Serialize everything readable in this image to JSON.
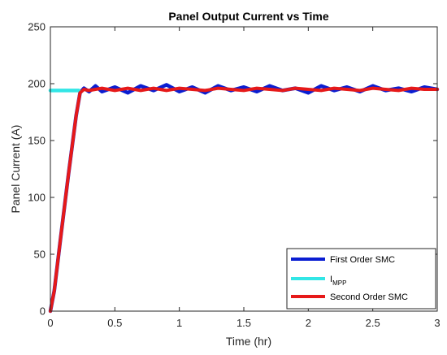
{
  "chart_data": {
    "type": "line",
    "title": "Panel Output Current vs Time",
    "xlabel": "Time (hr)",
    "ylabel": "Panel Current (A)",
    "xlim": [
      0,
      3
    ],
    "ylim": [
      0,
      250
    ],
    "xticks": [
      0,
      0.5,
      1,
      1.5,
      2,
      2.5,
      3
    ],
    "xtick_labels": [
      "0",
      "0.5",
      "1",
      "1.5",
      "2",
      "2.5",
      "3"
    ],
    "yticks": [
      0,
      50,
      100,
      150,
      200,
      250
    ],
    "ytick_labels": [
      "0",
      "50",
      "100",
      "150",
      "200",
      "250"
    ],
    "grid": false,
    "legend_position": "bottom-right",
    "series": [
      {
        "name": "First Order SMC",
        "color": "#0a1ed2",
        "x": [
          0,
          0.03,
          0.08,
          0.14,
          0.2,
          0.23,
          0.26,
          0.3,
          0.35,
          0.4,
          0.5,
          0.6,
          0.7,
          0.8,
          0.9,
          1.0,
          1.1,
          1.2,
          1.3,
          1.4,
          1.5,
          1.6,
          1.7,
          1.8,
          1.9,
          2.0,
          2.1,
          2.2,
          2.3,
          2.4,
          2.5,
          2.6,
          2.7,
          2.8,
          2.9,
          3.0
        ],
        "y": [
          0,
          18,
          65,
          120,
          172,
          192,
          196,
          193,
          198,
          193,
          197,
          192,
          198,
          194,
          199,
          193,
          197,
          192,
          198,
          194,
          197,
          193,
          198,
          194,
          196,
          192,
          198,
          194,
          197,
          193,
          198,
          194,
          196,
          193,
          197,
          195
        ]
      },
      {
        "name": "I",
        "name_subscript": "MPP",
        "color": "#32e6e6",
        "x": [
          0,
          0.22
        ],
        "y": [
          194,
          194
        ]
      },
      {
        "name": "Second Order SMC",
        "color": "#e61919",
        "x": [
          0,
          0.03,
          0.08,
          0.14,
          0.2,
          0.23,
          0.26,
          0.3,
          0.4,
          0.5,
          0.6,
          0.7,
          0.8,
          0.9,
          1.0,
          1.1,
          1.2,
          1.3,
          1.4,
          1.5,
          1.6,
          1.7,
          1.8,
          1.9,
          2.0,
          2.1,
          2.2,
          2.3,
          2.4,
          2.5,
          2.6,
          2.7,
          2.8,
          2.9,
          3.0
        ],
        "y": [
          0,
          18,
          65,
          120,
          172,
          192,
          195,
          194,
          196,
          194,
          196,
          194,
          196,
          194,
          196,
          195,
          194,
          196,
          195,
          194,
          196,
          195,
          194,
          196,
          195,
          194,
          196,
          195,
          194,
          196,
          195,
          194,
          196,
          195,
          195
        ]
      }
    ]
  }
}
